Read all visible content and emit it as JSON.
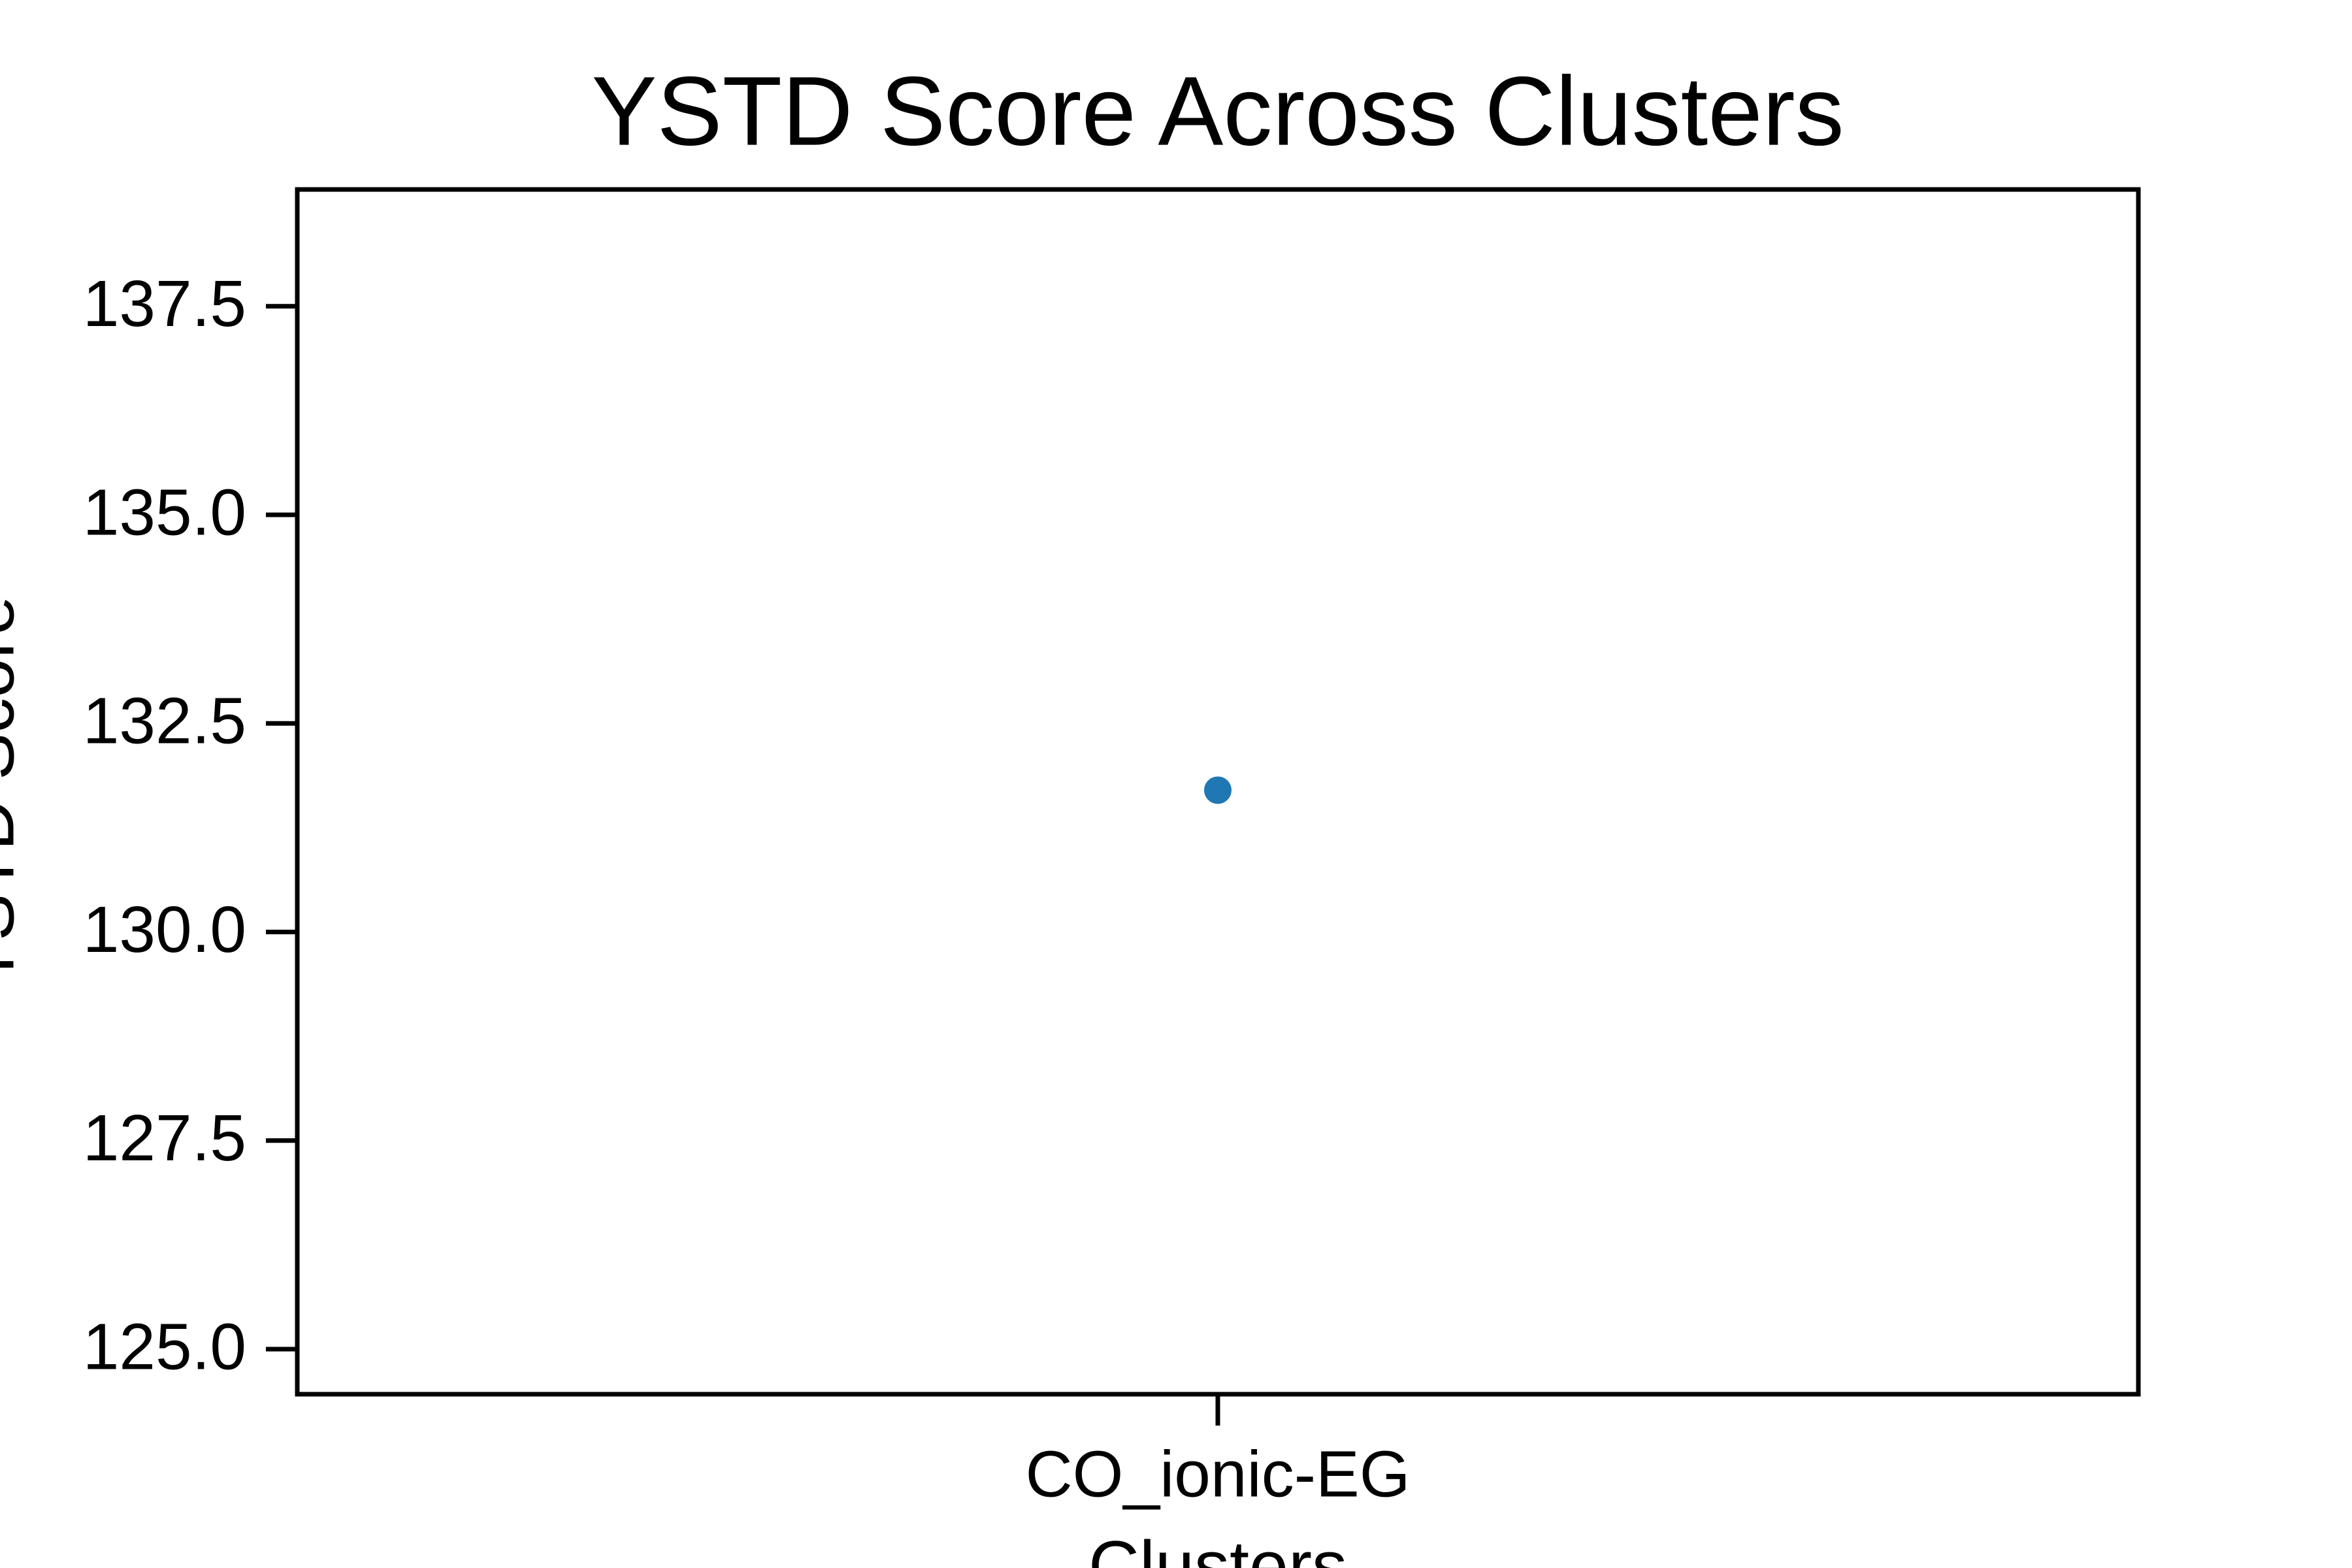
{
  "chart_data": {
    "type": "point",
    "title": "YSTD Score Across Clusters",
    "x_label": "Clusters",
    "y_label": "YSTD Score",
    "categories": [
      "CO_ionic-EG"
    ],
    "values": [
      131.7
    ],
    "color": "#1f77b4",
    "ylim": [
      124.46,
      138.9
    ],
    "yticks": [
      {
        "value": 125,
        "label": "125.0"
      },
      {
        "value": 127.5,
        "label": "127.5"
      },
      {
        "value": 130,
        "label": "130.0"
      },
      {
        "value": 132.5,
        "label": "132.5"
      },
      {
        "value": 135,
        "label": "135.0"
      },
      {
        "value": 137.5,
        "label": "137.5"
      }
    ],
    "grid": false
  }
}
